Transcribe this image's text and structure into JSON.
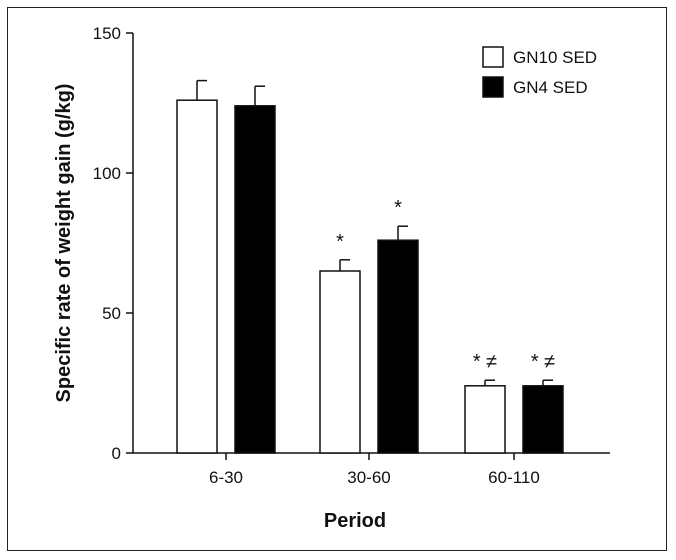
{
  "chart_data": {
    "type": "bar",
    "title": "",
    "xlabel": "Period",
    "ylabel": "Specific rate of weight gain (g/kg)",
    "categories": [
      "6-30",
      "30-60",
      "60-110"
    ],
    "ylim": [
      0,
      150
    ],
    "yticks": [
      0,
      50,
      100,
      150
    ],
    "grid": false,
    "legend_position": "top-right",
    "series": [
      {
        "name": "GN10 SED",
        "fill": "#ffffff",
        "values": [
          126,
          65,
          24
        ],
        "errors": [
          7,
          4,
          2
        ],
        "annotations": [
          "",
          "*",
          "* ≠"
        ]
      },
      {
        "name": "GN4 SED",
        "fill": "#000000",
        "values": [
          124,
          76,
          24
        ],
        "errors": [
          7,
          5,
          2
        ],
        "annotations": [
          "",
          "*",
          "* ≠"
        ]
      }
    ]
  }
}
